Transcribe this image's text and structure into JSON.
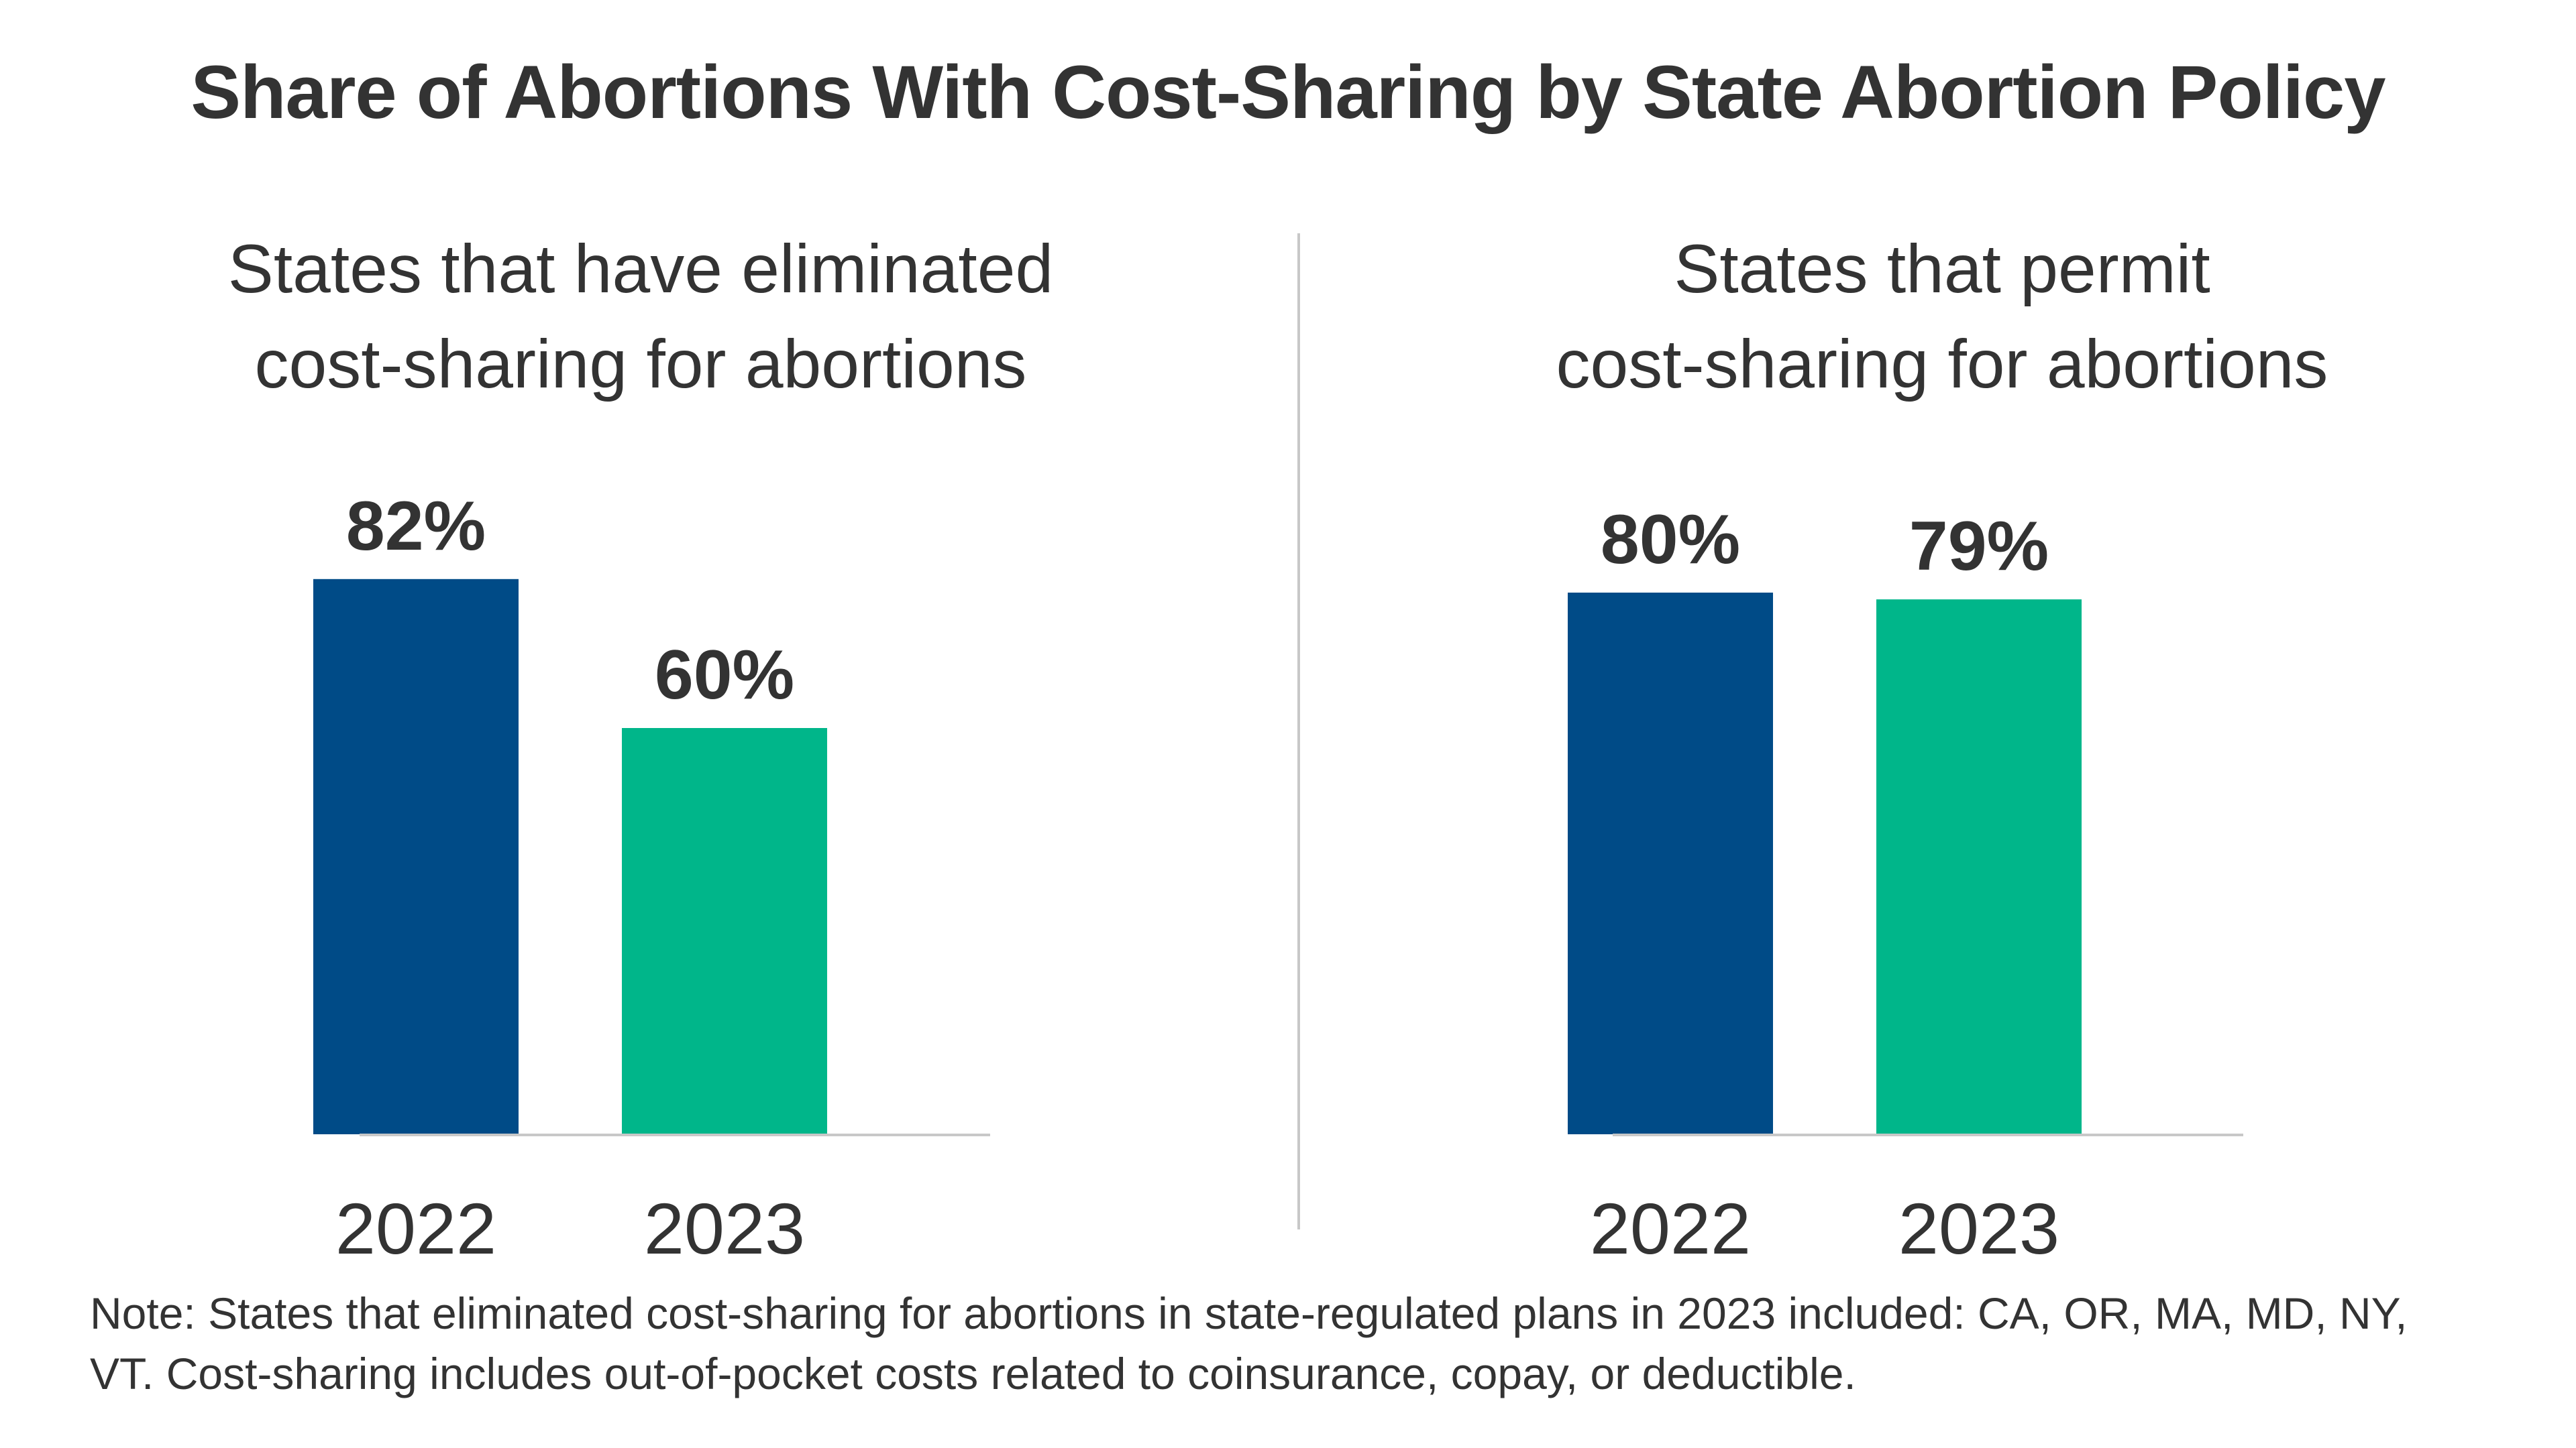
{
  "title": "Share of Abortions With Cost-Sharing by State Abortion Policy",
  "colors": {
    "year_2022": "#004b87",
    "year_2023": "#00b68a",
    "text": "#333333",
    "axis": "#c8c8c8"
  },
  "chart_data": [
    {
      "type": "bar",
      "title_lines": [
        "States that have eliminated",
        "cost-sharing for abortions"
      ],
      "categories": [
        "2022",
        "2023"
      ],
      "values": [
        82,
        60
      ],
      "value_labels": [
        "82%",
        "60%"
      ],
      "ylim": [
        0,
        100
      ],
      "grid": false
    },
    {
      "type": "bar",
      "title_lines": [
        "States that permit",
        "cost-sharing for abortions"
      ],
      "categories": [
        "2022",
        "2023"
      ],
      "values": [
        80,
        79
      ],
      "value_labels": [
        "80%",
        "79%"
      ],
      "ylim": [
        0,
        100
      ],
      "grid": false
    }
  ],
  "note": {
    "line1": "Note: States that eliminated cost-sharing for abortions in state-regulated plans in 2023 included: CA, OR, MA, MD, NY,",
    "line2": "VT. Cost-sharing includes out-of-pocket costs related to coinsurance, copay, or deductible."
  }
}
